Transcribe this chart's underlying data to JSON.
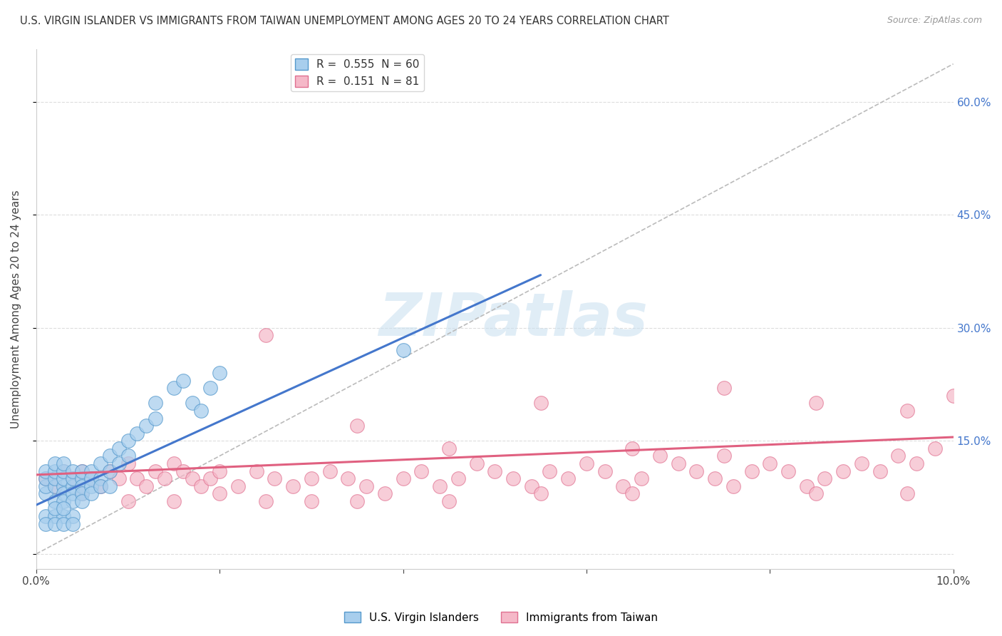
{
  "title": "U.S. VIRGIN ISLANDER VS IMMIGRANTS FROM TAIWAN UNEMPLOYMENT AMONG AGES 20 TO 24 YEARS CORRELATION CHART",
  "source": "Source: ZipAtlas.com",
  "ylabel": "Unemployment Among Ages 20 to 24 years",
  "legend_label_blue": "U.S. Virgin Islanders",
  "legend_label_pink": "Immigrants from Taiwan",
  "R_blue": 0.555,
  "N_blue": 60,
  "R_pink": 0.151,
  "N_pink": 81,
  "blue_fill": "#A8CEED",
  "blue_edge": "#5599CC",
  "pink_fill": "#F5B8C8",
  "pink_edge": "#E07090",
  "blue_line_color": "#4477CC",
  "pink_line_color": "#E06080",
  "background_color": "#FFFFFF",
  "watermark_text": "ZIPatlas",
  "xlim": [
    0.0,
    0.1
  ],
  "ylim": [
    -0.02,
    0.67
  ],
  "right_yticks": [
    0.15,
    0.3,
    0.45,
    0.6
  ],
  "right_yticklabels": [
    "15.0%",
    "30.0%",
    "45.0%",
    "60.0%"
  ],
  "blue_trend_x": [
    0.0,
    0.055
  ],
  "blue_trend_y": [
    0.065,
    0.37
  ],
  "pink_trend_x": [
    0.0,
    0.1
  ],
  "pink_trend_y": [
    0.105,
    0.155
  ],
  "gray_line_x": [
    0.0,
    0.1
  ],
  "gray_line_y": [
    0.0,
    0.65
  ],
  "blue_scatter_x": [
    0.001,
    0.001,
    0.001,
    0.001,
    0.002,
    0.002,
    0.002,
    0.002,
    0.002,
    0.003,
    0.003,
    0.003,
    0.003,
    0.003,
    0.003,
    0.004,
    0.004,
    0.004,
    0.004,
    0.004,
    0.005,
    0.005,
    0.005,
    0.005,
    0.005,
    0.006,
    0.006,
    0.006,
    0.006,
    0.007,
    0.007,
    0.007,
    0.008,
    0.008,
    0.008,
    0.009,
    0.009,
    0.01,
    0.01,
    0.011,
    0.012,
    0.013,
    0.013,
    0.015,
    0.016,
    0.017,
    0.018,
    0.019,
    0.02,
    0.001,
    0.002,
    0.003,
    0.004,
    0.001,
    0.002,
    0.003,
    0.004,
    0.002,
    0.003,
    0.04
  ],
  "blue_scatter_y": [
    0.08,
    0.09,
    0.1,
    0.11,
    0.09,
    0.1,
    0.11,
    0.12,
    0.07,
    0.09,
    0.1,
    0.11,
    0.12,
    0.08,
    0.07,
    0.09,
    0.1,
    0.11,
    0.08,
    0.07,
    0.1,
    0.11,
    0.09,
    0.08,
    0.07,
    0.11,
    0.1,
    0.09,
    0.08,
    0.12,
    0.1,
    0.09,
    0.13,
    0.11,
    0.09,
    0.14,
    0.12,
    0.15,
    0.13,
    0.16,
    0.17,
    0.18,
    0.2,
    0.22,
    0.23,
    0.2,
    0.19,
    0.22,
    0.24,
    0.05,
    0.05,
    0.05,
    0.05,
    0.04,
    0.04,
    0.04,
    0.04,
    0.06,
    0.06,
    0.27
  ],
  "pink_scatter_x": [
    0.001,
    0.002,
    0.003,
    0.004,
    0.005,
    0.006,
    0.007,
    0.008,
    0.009,
    0.01,
    0.011,
    0.012,
    0.013,
    0.014,
    0.015,
    0.016,
    0.017,
    0.018,
    0.019,
    0.02,
    0.022,
    0.024,
    0.026,
    0.028,
    0.03,
    0.032,
    0.034,
    0.036,
    0.038,
    0.04,
    0.042,
    0.044,
    0.046,
    0.048,
    0.05,
    0.052,
    0.054,
    0.056,
    0.058,
    0.06,
    0.062,
    0.064,
    0.066,
    0.068,
    0.07,
    0.072,
    0.074,
    0.076,
    0.078,
    0.08,
    0.082,
    0.084,
    0.086,
    0.088,
    0.09,
    0.092,
    0.094,
    0.096,
    0.098,
    0.1,
    0.025,
    0.035,
    0.045,
    0.055,
    0.065,
    0.075,
    0.085,
    0.095,
    0.015,
    0.025,
    0.035,
    0.045,
    0.055,
    0.065,
    0.075,
    0.085,
    0.095,
    0.005,
    0.01,
    0.02,
    0.03
  ],
  "pink_scatter_y": [
    0.1,
    0.09,
    0.11,
    0.1,
    0.11,
    0.1,
    0.09,
    0.11,
    0.1,
    0.12,
    0.1,
    0.09,
    0.11,
    0.1,
    0.12,
    0.11,
    0.1,
    0.09,
    0.1,
    0.11,
    0.09,
    0.11,
    0.1,
    0.09,
    0.1,
    0.11,
    0.1,
    0.09,
    0.08,
    0.1,
    0.11,
    0.09,
    0.1,
    0.12,
    0.11,
    0.1,
    0.09,
    0.11,
    0.1,
    0.12,
    0.11,
    0.09,
    0.1,
    0.13,
    0.12,
    0.11,
    0.1,
    0.09,
    0.11,
    0.12,
    0.11,
    0.09,
    0.1,
    0.11,
    0.12,
    0.11,
    0.13,
    0.12,
    0.14,
    0.21,
    0.29,
    0.17,
    0.14,
    0.2,
    0.14,
    0.22,
    0.2,
    0.19,
    0.07,
    0.07,
    0.07,
    0.07,
    0.08,
    0.08,
    0.13,
    0.08,
    0.08,
    0.08,
    0.07,
    0.08,
    0.07
  ]
}
